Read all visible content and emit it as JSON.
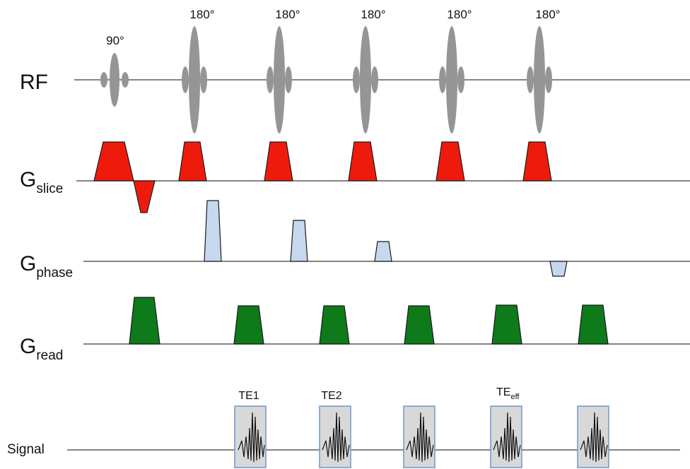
{
  "rows": {
    "rf": "RF",
    "slice": {
      "main": "G",
      "sub": "slice"
    },
    "phase": {
      "main": "G",
      "sub": "phase"
    },
    "read": {
      "main": "G",
      "sub": "read"
    },
    "signal": "Signal"
  },
  "pulses": {
    "excitation": "90°",
    "refocusing": [
      "180°",
      "180°",
      "180°",
      "180°",
      "180°"
    ]
  },
  "echoes": {
    "labels": [
      {
        "main": "TE1",
        "sub": ""
      },
      {
        "main": "TE2",
        "sub": ""
      },
      {
        "main": "",
        "sub": ""
      },
      {
        "main": "TE",
        "sub": "eff"
      },
      {
        "main": "",
        "sub": ""
      }
    ]
  },
  "colors": {
    "rf": "#959595",
    "slice": "#ee1b0c",
    "phase": "#c6d8ee",
    "read": "#0e7a1a",
    "echo_fill": "#d8d8d8",
    "echo_border": "#6f97c8"
  }
}
